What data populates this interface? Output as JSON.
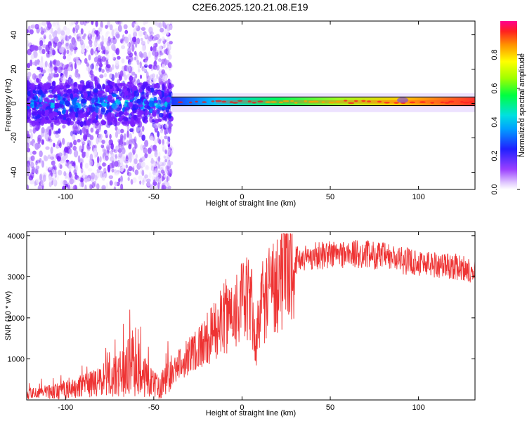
{
  "title": "C2E6.2025.120.21.08.E19",
  "chart_data": [
    {
      "type": "heatmap",
      "xlabel": "Height of straight line (km)",
      "ylabel": "Frequency (Hz)",
      "xlim": [
        -122,
        132
      ],
      "ylim": [
        -50,
        48
      ],
      "xticks": [
        -100,
        -50,
        0,
        50,
        100
      ],
      "yticks": [
        -40,
        -20,
        0,
        20,
        40
      ],
      "colorbar": {
        "label": "Normalized spectral amplitude",
        "range": [
          0,
          1
        ],
        "ticks": [
          "0.0",
          "0.2",
          "0.4",
          "0.6",
          "0.8"
        ]
      },
      "description_values": {
        "ridge_frequency_hz": 1,
        "noise_region_x": [
          -122,
          -40
        ],
        "ridge_peak_x": [
          60,
          132
        ]
      }
    },
    {
      "type": "line",
      "xlabel": "Height of straight line (km)",
      "ylabel": "SNR (10 * v/v)",
      "xlim": [
        -122,
        132
      ],
      "ylim": [
        0,
        4100
      ],
      "xticks": [
        -100,
        -50,
        0,
        50,
        100
      ],
      "yticks": [
        1000,
        2000,
        3000,
        4000
      ],
      "series": [
        {
          "color": "#ee3333",
          "x": [
            -122,
            -110,
            -100,
            -90,
            -80,
            -70,
            -62,
            -55,
            -50,
            -45,
            -40,
            -35,
            -30,
            -25,
            -20,
            -15,
            -10,
            -5,
            0,
            5,
            8,
            10,
            15,
            20,
            25,
            30,
            40,
            50,
            60,
            70,
            80,
            90,
            100,
            110,
            120,
            132
          ],
          "y": [
            150,
            200,
            230,
            320,
            450,
            600,
            900,
            650,
            350,
            400,
            600,
            900,
            1100,
            1300,
            1450,
            1700,
            2000,
            2200,
            2350,
            2450,
            1200,
            2300,
            2600,
            2900,
            3200,
            3400,
            3500,
            3550,
            3550,
            3550,
            3500,
            3400,
            3350,
            3300,
            3250,
            3150
          ]
        }
      ]
    }
  ]
}
